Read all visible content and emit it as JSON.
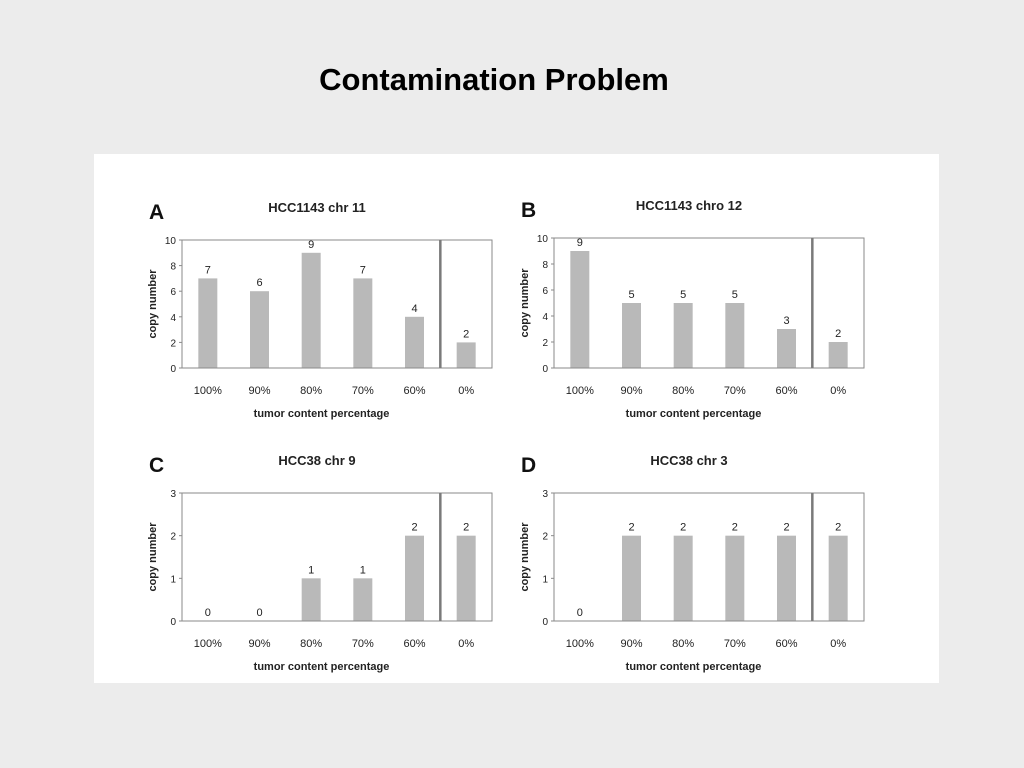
{
  "slide": {
    "title": "Contamination  Problem"
  },
  "colors": {
    "bar": "#b9b9b9",
    "axis": "#8a8a8a",
    "divider": "#7a7a7a",
    "text": "#222222"
  },
  "chart_data": [
    {
      "type": "bar",
      "panel_letter": "A",
      "title": "HCC1143 chr 11",
      "xlabel": "tumor content percentage",
      "ylabel": "copy number",
      "categories": [
        "100%",
        "90%",
        "80%",
        "70%",
        "60%",
        "0%"
      ],
      "values": [
        7,
        6,
        9,
        7,
        4,
        2
      ],
      "data_labels": [
        "7",
        "6",
        "9",
        "7",
        "4",
        "2"
      ],
      "ylim": [
        0,
        10
      ],
      "yticks": [
        "0",
        "2",
        "4",
        "6",
        "8",
        "10"
      ],
      "grid": false,
      "divider_before_index": 5
    },
    {
      "type": "bar",
      "panel_letter": "B",
      "title": "HCC1143 chro 12",
      "xlabel": "tumor content percentage",
      "ylabel": "copy number",
      "categories": [
        "100%",
        "90%",
        "80%",
        "70%",
        "60%",
        "0%"
      ],
      "values": [
        9,
        5,
        5,
        5,
        3,
        2
      ],
      "data_labels": [
        "9",
        "5",
        "5",
        "5",
        "3",
        "2"
      ],
      "ylim": [
        0,
        10
      ],
      "yticks": [
        "0",
        "2",
        "4",
        "6",
        "8",
        "10"
      ],
      "grid": false,
      "divider_before_index": 5
    },
    {
      "type": "bar",
      "panel_letter": "C",
      "title": "HCC38 chr 9",
      "xlabel": "tumor content percentage",
      "ylabel": "copy number",
      "categories": [
        "100%",
        "90%",
        "80%",
        "70%",
        "60%",
        "0%"
      ],
      "values": [
        0,
        0,
        1,
        1,
        2,
        2
      ],
      "data_labels": [
        "0",
        "0",
        "1",
        "1",
        "2",
        "2"
      ],
      "ylim": [
        0,
        3
      ],
      "yticks": [
        "0",
        "1",
        "2",
        "3"
      ],
      "grid": false,
      "divider_before_index": 5
    },
    {
      "type": "bar",
      "panel_letter": "D",
      "title": "HCC38 chr 3",
      "xlabel": "tumor content percentage",
      "ylabel": "copy number",
      "categories": [
        "100%",
        "90%",
        "80%",
        "70%",
        "60%",
        "0%"
      ],
      "values": [
        0,
        2,
        2,
        2,
        2,
        2
      ],
      "data_labels": [
        "0",
        "2",
        "2",
        "2",
        "2",
        "2"
      ],
      "ylim": [
        0,
        3
      ],
      "yticks": [
        "0",
        "1",
        "2",
        "3"
      ],
      "grid": false,
      "divider_before_index": 5
    }
  ]
}
